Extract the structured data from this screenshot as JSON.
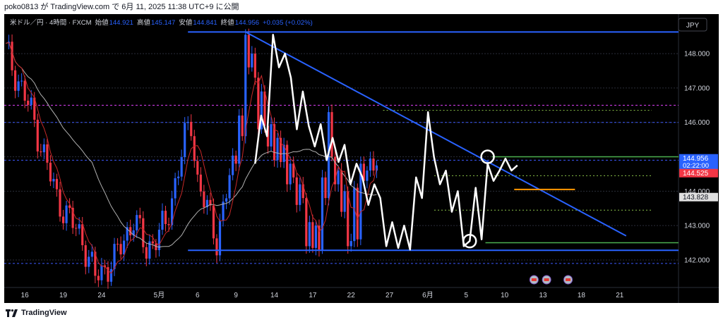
{
  "header": {
    "published": "poko0813 が TradingView.com で 6月 11, 2025 11:38 UTC+9 に公開"
  },
  "footer": {
    "brand": "TradingView"
  },
  "colors": {
    "background": "#000000",
    "candle_up": "#2962ff",
    "candle_down": "#f23645",
    "trendline": "#2962ff",
    "zigzag": "#ffffff",
    "ma_fast": "#c62828",
    "ma_slow": "#b0b0b0",
    "support_green": "#4caf50",
    "dashed_blue": "#3d5afe",
    "dashed_magenta": "#e040fb",
    "orange_level": "#ff9800",
    "grid": "#2a2e39",
    "axis_text": "#d1d4dc"
  },
  "chart_data": {
    "type": "candlestick",
    "symbol_line": {
      "pair": "米ドル／円 · 4時間 · FXCM",
      "open_label": "始値",
      "open": "144.921",
      "high_label": "高値",
      "high": "145.147",
      "low_label": "安値",
      "low": "144.841",
      "close_label": "終値",
      "close": "144.956",
      "change": "+0.035 (+0.02%)"
    },
    "currency_button": "JPY",
    "ylim": [
      141.2,
      149.15
    ],
    "y_ticks": [
      {
        "value": 148.0,
        "label": "148.000"
      },
      {
        "value": 147.0,
        "label": "147.000"
      },
      {
        "value": 146.0,
        "label": "146.000"
      },
      {
        "value": 145.0,
        "label": "145.000"
      },
      {
        "value": 144.0,
        "label": "144.000"
      },
      {
        "value": 143.0,
        "label": "143.000"
      },
      {
        "value": 142.0,
        "label": "142.000"
      }
    ],
    "x_ticks": [
      {
        "bar": 6,
        "label": "16"
      },
      {
        "bar": 18,
        "label": "19"
      },
      {
        "bar": 30,
        "label": "24"
      },
      {
        "bar": 48,
        "label": "5月"
      },
      {
        "bar": 60,
        "label": "6"
      },
      {
        "bar": 72,
        "label": "9"
      },
      {
        "bar": 84,
        "label": "14"
      },
      {
        "bar": 96,
        "label": "17"
      },
      {
        "bar": 108,
        "label": "22"
      },
      {
        "bar": 120,
        "label": "27"
      },
      {
        "bar": 132,
        "label": "6月"
      },
      {
        "bar": 144,
        "label": "5"
      },
      {
        "bar": 156,
        "label": "10"
      },
      {
        "bar": 168,
        "label": "13"
      },
      {
        "bar": 180,
        "label": "18"
      },
      {
        "bar": 192,
        "label": "21"
      }
    ],
    "price_labels": [
      {
        "value": 144.956,
        "text": "144.956",
        "subtext": "02:22:00",
        "bg": "#2962ff",
        "fg": "#ffffff"
      },
      {
        "value": 144.525,
        "text": "144.525",
        "bg": "#f23645",
        "fg": "#ffffff"
      },
      {
        "value": 143.828,
        "text": "143.828",
        "bg": "#e0e0e0",
        "fg": "#131722"
      }
    ],
    "zigzag": [
      [
        72,
        144.8
      ],
      [
        73,
        146.2
      ],
      [
        74,
        145.6
      ],
      [
        75,
        148.55
      ],
      [
        76,
        147.6
      ],
      [
        77,
        148.0
      ],
      [
        78,
        147.3
      ],
      [
        79,
        145.8
      ],
      [
        80,
        146.9
      ],
      [
        81,
        145.9
      ],
      [
        82,
        145.3
      ],
      [
        83,
        145.95
      ],
      [
        84,
        144.9
      ],
      [
        85,
        145.55
      ],
      [
        86,
        144.85
      ],
      [
        87,
        145.35
      ],
      [
        88,
        144.2
      ],
      [
        89,
        144.8
      ],
      [
        90,
        144.4
      ],
      [
        91,
        143.6
      ],
      [
        92,
        144.2
      ],
      [
        93,
        143.8
      ],
      [
        94,
        142.4
      ],
      [
        95,
        143.1
      ],
      [
        96,
        142.35
      ],
      [
        97,
        143.0
      ],
      [
        98,
        142.3
      ],
      [
        99,
        144.4
      ],
      [
        100,
        143.8
      ],
      [
        101,
        146.3
      ],
      [
        102,
        145.0
      ],
      [
        103,
        144.2
      ],
      [
        104,
        144.6
      ],
      [
        105,
        143.4
      ],
      [
        106,
        144.0
      ],
      [
        107,
        142.4
      ],
      [
        108,
        142.55
      ],
      [
        109,
        144.1
      ],
      [
        110,
        142.6
      ],
      [
        111,
        144.8
      ],
      [
        112,
        144.3
      ],
      [
        113,
        144.6
      ],
      [
        114,
        144.95
      ],
      [
        115,
        144.6
      ],
      [
        116,
        144.75
      ]
    ],
    "drawings": {
      "resistance_top": 148.63,
      "support_bottom": 142.28,
      "downtrend": {
        "x1": 75,
        "y1": 148.63,
        "x2": 194,
        "y2": 142.7
      },
      "green_upper": 145.0,
      "green_lower": 142.5,
      "orange_level": 144.05,
      "dashed_blue_levels": [
        146.0,
        144.9,
        141.9
      ],
      "dashed_magenta": 146.5,
      "dotted_green_levels": [
        146.35,
        144.45,
        143.45
      ],
      "circle_high": {
        "bar": 111,
        "value": 145.0
      },
      "circle_low": {
        "bar": 108,
        "value": 142.55
      }
    },
    "event_icon_bars": [
      147.5,
      151,
      157
    ]
  }
}
